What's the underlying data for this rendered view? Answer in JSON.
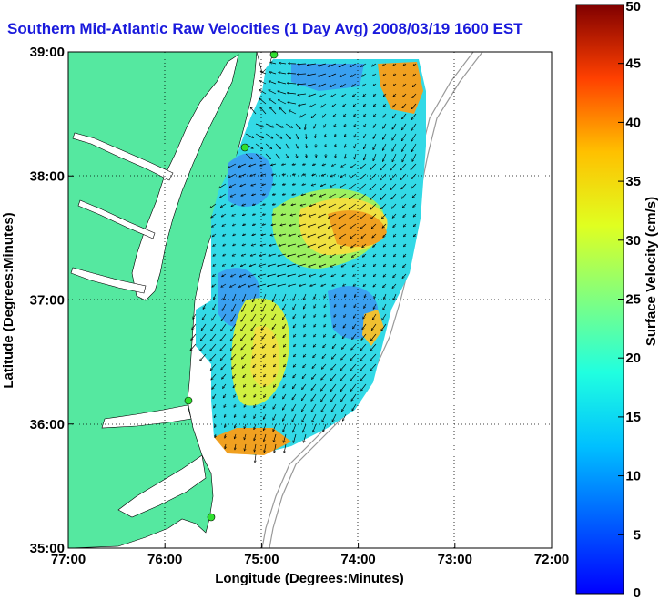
{
  "title": "Southern Mid-Atlantic Raw Velocities (1 Day Avg) 2008/03/19 1600 EST",
  "map": {
    "xlabel": "Longitude (Degrees:Minutes)",
    "ylabel": "Latitude (Degrees:Minutes)",
    "x_ticks": [
      "77:00",
      "76:00",
      "75:00",
      "74:00",
      "73:00",
      "72:00"
    ],
    "y_ticks": [
      "39:00",
      "38:00",
      "37:00",
      "36:00",
      "35:00"
    ],
    "lon_range": [
      -77,
      -72
    ],
    "lat_range": [
      35,
      39
    ],
    "grid": "dotted",
    "land_color": "#55e8a0",
    "arrow_color": "#000000"
  },
  "colorbar": {
    "label": "Surface Velocity (cm/s)",
    "ticks": [
      "50",
      "45",
      "40",
      "35",
      "30",
      "25",
      "20",
      "15",
      "10",
      "5",
      "0"
    ],
    "range": [
      0,
      50
    ],
    "colormap": "jet"
  },
  "stations_icon": "green-dot-icon"
}
